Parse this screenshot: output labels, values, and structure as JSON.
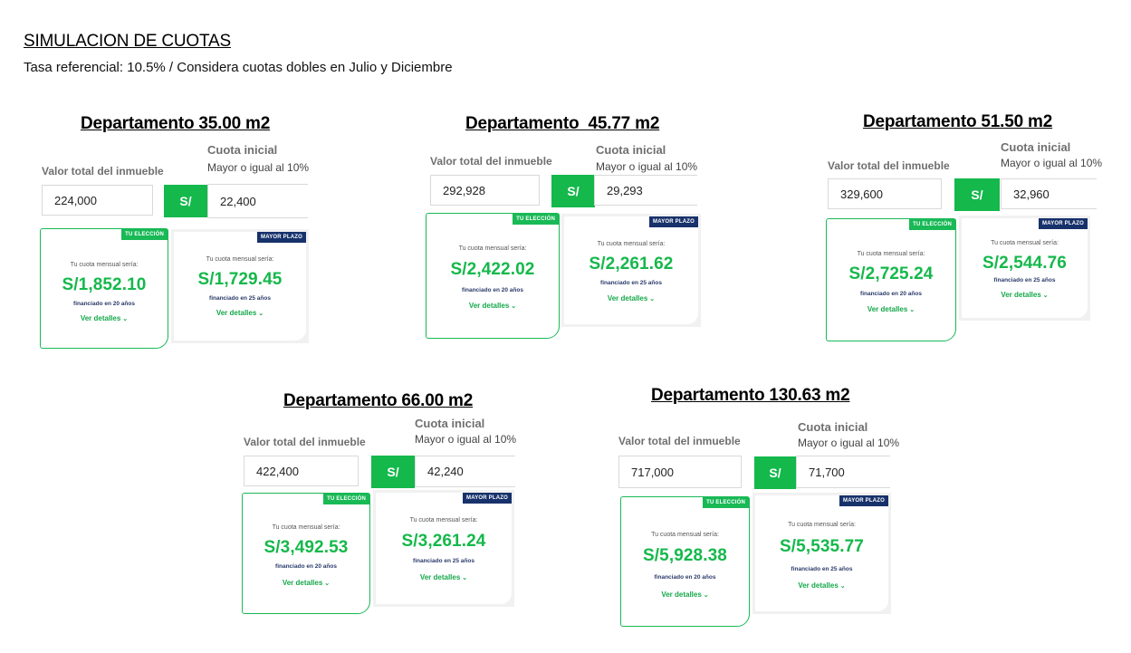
{
  "header": {
    "title": "SIMULACION DE CUOTAS",
    "subtitle": "Tasa referencial: 10.5% / Considera cuotas dobles en Julio y Diciembre"
  },
  "common": {
    "valor_label": "Valor total del inmueble",
    "cuota_label": "Cuota inicial",
    "mayor_label": "Mayor o igual al 10%",
    "currency_button": "S/",
    "badge_primary": "TU ELECCIÓN",
    "badge_secondary": "MAYOR PLAZO",
    "card_label": "Tu cuota mensual sería:",
    "fin_20": "financiado en 20 años",
    "fin_25": "financiado en 25 años",
    "ver_detalles": "Ver detalles",
    "accent_color": "#14b84b",
    "badge_navy_color": "#17316b"
  },
  "departments": [
    {
      "title": "Departamento 35.00 m2",
      "valor": "224,000",
      "cuota_inicial": "22,400",
      "cuota_20": "S/1,852.10",
      "cuota_25": "S/1,729.45"
    },
    {
      "title": "Departamento  45.77 m2",
      "valor": "292,928",
      "cuota_inicial": "29,293",
      "cuota_20": "S/2,422.02",
      "cuota_25": "S/2,261.62"
    },
    {
      "title": "Departamento 51.50 m2",
      "valor": "329,600",
      "cuota_inicial": "32,960",
      "cuota_20": "S/2,725.24",
      "cuota_25": "S/2,544.76"
    },
    {
      "title": "Departamento 66.00 m2",
      "valor": "422,400",
      "cuota_inicial": "42,240",
      "cuota_20": "S/3,492.53",
      "cuota_25": "S/3,261.24"
    },
    {
      "title": "Departamento 130.63 m2",
      "valor": "717,000",
      "cuota_inicial": "71,700",
      "cuota_20": "S/5,928.38",
      "cuota_25": "S/5,535.77"
    }
  ]
}
